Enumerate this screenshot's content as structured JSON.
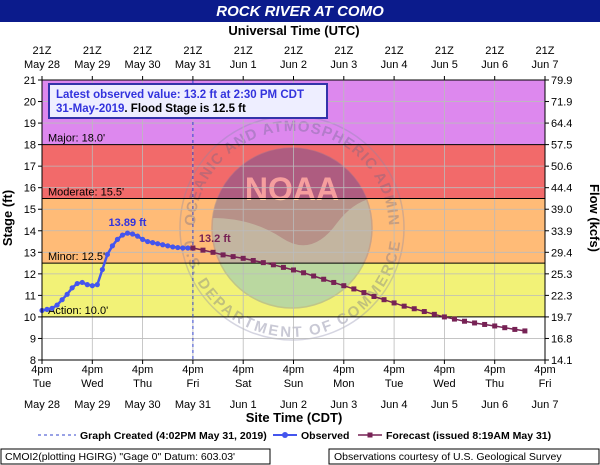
{
  "header": {
    "title": "ROCK RIVER AT COMO"
  },
  "colors": {
    "title_bg": "#0b1b8c",
    "plot_bg_top": "#dd88ee",
    "major": "#f26a6a",
    "moderate": "#ffbb77",
    "minor": "#f2f277",
    "normal": "#ffffff",
    "observed": "#4455ee",
    "forecast": "#772255",
    "annotation_border": "#3333aa",
    "annotation_bg": "#eeeeff"
  },
  "chart_data": {
    "type": "line",
    "title": "ROCK RIVER AT COMO",
    "xlabel": "Site Time (CDT)",
    "xlabel_top": "Universal Time (UTC)",
    "ylabel": "Stage (ft)",
    "ylabel_right": "Flow (kcfs)",
    "ylim": [
      8,
      21
    ],
    "yticks": [
      8,
      9,
      10,
      11,
      12,
      13,
      14,
      15,
      16,
      17,
      18,
      19,
      20,
      21
    ],
    "flow_ticks": [
      {
        "stage": 21,
        "label": "79.9"
      },
      {
        "stage": 20,
        "label": "71.9"
      },
      {
        "stage": 19,
        "label": "64.4"
      },
      {
        "stage": 18,
        "label": "57.5"
      },
      {
        "stage": 17,
        "label": "50.6"
      },
      {
        "stage": 16,
        "label": "44.4"
      },
      {
        "stage": 15,
        "label": "39.0"
      },
      {
        "stage": 14,
        "label": "33.9"
      },
      {
        "stage": 13,
        "label": "29.4"
      },
      {
        "stage": 12,
        "label": "25.3"
      },
      {
        "stage": 11,
        "label": "22.3"
      },
      {
        "stage": 10,
        "label": "19.7"
      },
      {
        "stage": 9,
        "label": "16.8"
      },
      {
        "stage": 8,
        "label": "14.1"
      }
    ],
    "xlim_days": [
      0,
      10
    ],
    "bottom_ticks": [
      {
        "line1": "4pm",
        "line2": "Tue",
        "line3": "May 28"
      },
      {
        "line1": "4pm",
        "line2": "Wed",
        "line3": "May 29"
      },
      {
        "line1": "4pm",
        "line2": "Thu",
        "line3": "May 30"
      },
      {
        "line1": "4pm",
        "line2": "Fri",
        "line3": "May 31"
      },
      {
        "line1": "4pm",
        "line2": "Sat",
        "line3": "Jun 1"
      },
      {
        "line1": "4pm",
        "line2": "Sun",
        "line3": "Jun 2"
      },
      {
        "line1": "4pm",
        "line2": "Mon",
        "line3": "Jun 3"
      },
      {
        "line1": "4pm",
        "line2": "Tue",
        "line3": "Jun 4"
      },
      {
        "line1": "4pm",
        "line2": "Wed",
        "line3": "Jun 5"
      },
      {
        "line1": "4pm",
        "line2": "Thu",
        "line3": "Jun 6"
      },
      {
        "line1": "4pm",
        "line2": "Fri",
        "line3": "Jun 7"
      }
    ],
    "top_ticks": [
      {
        "line1": "21Z",
        "line2": "May 28"
      },
      {
        "line1": "21Z",
        "line2": "May 29"
      },
      {
        "line1": "21Z",
        "line2": "May 30"
      },
      {
        "line1": "21Z",
        "line2": "May 31"
      },
      {
        "line1": "21Z",
        "line2": "Jun 1"
      },
      {
        "line1": "21Z",
        "line2": "Jun 2"
      },
      {
        "line1": "21Z",
        "line2": "Jun 3"
      },
      {
        "line1": "21Z",
        "line2": "Jun 4"
      },
      {
        "line1": "21Z",
        "line2": "Jun 5"
      },
      {
        "line1": "21Z",
        "line2": "Jun 6"
      },
      {
        "line1": "21Z",
        "line2": "Jun 7"
      }
    ],
    "flood_categories": [
      {
        "name": "Major",
        "label": "Major: 18.0'",
        "stage": 18.0
      },
      {
        "name": "Moderate",
        "label": "Moderate: 15.5'",
        "stage": 15.5
      },
      {
        "name": "Minor",
        "label": "Minor: 12.5'",
        "stage": 12.5
      },
      {
        "name": "Action",
        "label": "Action: 10.0'",
        "stage": 10.0
      }
    ],
    "graph_created_day": 3.0,
    "series": [
      {
        "name": "Observed",
        "x": [
          0.0,
          0.1,
          0.2,
          0.3,
          0.4,
          0.5,
          0.6,
          0.7,
          0.8,
          0.9,
          1.0,
          1.1,
          1.2,
          1.3,
          1.4,
          1.5,
          1.6,
          1.7,
          1.8,
          1.9,
          2.0,
          2.1,
          2.2,
          2.3,
          2.4,
          2.5,
          2.6,
          2.7,
          2.8,
          2.9,
          3.0
        ],
        "y": [
          10.3,
          10.35,
          10.4,
          10.55,
          10.8,
          11.05,
          11.35,
          11.55,
          11.6,
          11.5,
          11.45,
          11.5,
          12.2,
          12.9,
          13.3,
          13.6,
          13.8,
          13.89,
          13.85,
          13.75,
          13.6,
          13.5,
          13.45,
          13.4,
          13.35,
          13.3,
          13.25,
          13.22,
          13.2,
          13.2,
          13.2
        ]
      },
      {
        "name": "Forecast (issued 8:19AM May 31)",
        "x": [
          3.0,
          3.2,
          3.4,
          3.6,
          3.8,
          4.0,
          4.2,
          4.4,
          4.6,
          4.8,
          5.0,
          5.2,
          5.4,
          5.6,
          5.8,
          6.0,
          6.2,
          6.4,
          6.6,
          6.8,
          7.0,
          7.2,
          7.4,
          7.6,
          7.8,
          8.0,
          8.2,
          8.4,
          8.6,
          8.8,
          9.0,
          9.2,
          9.4,
          9.6
        ],
        "y": [
          13.2,
          13.1,
          13.0,
          12.88,
          12.8,
          12.72,
          12.62,
          12.52,
          12.42,
          12.3,
          12.18,
          12.05,
          11.9,
          11.75,
          11.6,
          11.45,
          11.3,
          11.13,
          10.95,
          10.8,
          10.65,
          10.5,
          10.38,
          10.25,
          10.12,
          10.0,
          9.9,
          9.8,
          9.72,
          9.65,
          9.58,
          9.5,
          9.42,
          9.35
        ]
      }
    ],
    "annotations": [
      {
        "text": "13.89 ft",
        "x": 1.7,
        "y": 13.89
      },
      {
        "text": "13.2 ft",
        "x": 3.0,
        "y": 13.2
      }
    ],
    "info_box": {
      "line1": "Latest observed value: 13.2  ft at 2:30 PM CDT",
      "line2_date": "31-May-2019",
      "line2_rest": ". Flood Stage is 12.5 ft"
    },
    "legend": {
      "placement": "bottom",
      "graph_created": "Graph Created (4:02PM May 31, 2019)",
      "observed": "Observed",
      "forecast": "Forecast (issued 8:19AM May 31)"
    },
    "watermark": {
      "top_text": "NATIONAL OCEANIC AND ATMOSPHERIC ADMINISTRATION",
      "bottom_text": "U.S. DEPARTMENT OF COMMERCE",
      "logo_text": "NOAA"
    }
  },
  "footer": {
    "left": "CMOI2(plotting HGIRG) \"Gage 0\" Datum: 603.03'",
    "right": "Observations courtesy of U.S. Geological Survey"
  }
}
